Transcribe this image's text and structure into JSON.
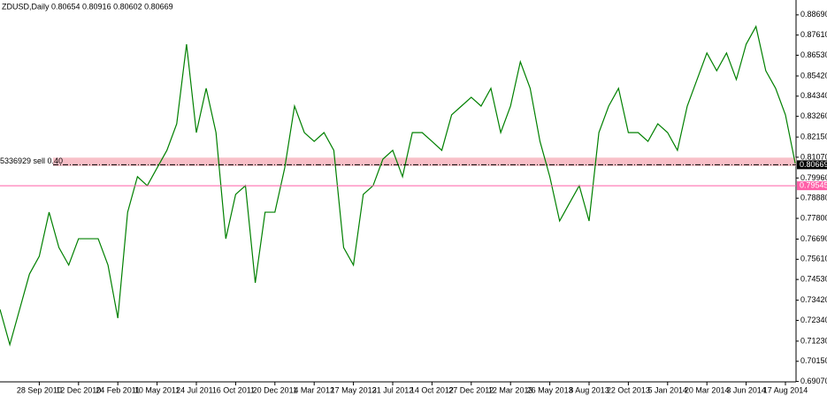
{
  "chart_data": {
    "type": "line",
    "title": "ZDUSD,Daily  0.80654 0.80916 0.80602 0.80669",
    "order_label": "5336929 sell 0.40",
    "categories": [
      null,
      null,
      null,
      null,
      "28 Sep 2010",
      null,
      null,
      null,
      "12 Dec 2010",
      null,
      null,
      null,
      "24 Feb 2011",
      null,
      null,
      null,
      "10 May 2011",
      null,
      null,
      null,
      "24 Jul 2011",
      null,
      null,
      null,
      "6 Oct 2011",
      null,
      null,
      null,
      "20 Dec 2011",
      null,
      null,
      null,
      "4 Mar 2012",
      null,
      null,
      null,
      "17 May 2012",
      null,
      null,
      null,
      "31 Jul 2012",
      null,
      null,
      null,
      "14 Oct 2012",
      null,
      null,
      null,
      "27 Dec 2012",
      null,
      null,
      null,
      "12 Mar 2013",
      null,
      null,
      null,
      "26 May 2013",
      null,
      null,
      null,
      "8 Aug 2013",
      null,
      null,
      null,
      "22 Oct 2013",
      null,
      null,
      null,
      "5 Jan 2014",
      null,
      null,
      null,
      "20 Mar 2014",
      null,
      null,
      null,
      "3 Jun 2014",
      null,
      null,
      null,
      "17 Aug 2014",
      null
    ],
    "values": [
      0.7293,
      0.7104,
      0.7293,
      0.7482,
      0.7577,
      0.7813,
      0.7624,
      0.753,
      0.7671,
      0.7671,
      0.7671,
      0.753,
      0.7246,
      0.7813,
      0.8003,
      0.7955,
      0.805,
      0.8144,
      0.8286,
      0.8712,
      0.8239,
      0.8476,
      0.8239,
      0.7671,
      0.7908,
      0.7955,
      0.7435,
      0.7813,
      0.7813,
      0.805,
      0.8381,
      0.8239,
      0.8192,
      0.8239,
      0.8144,
      0.7624,
      0.753,
      0.7908,
      0.7955,
      0.8097,
      0.8144,
      0.8003,
      0.8239,
      0.8239,
      0.8192,
      0.8144,
      0.8334,
      0.8381,
      0.8428,
      0.8381,
      0.8476,
      0.8239,
      0.8381,
      0.8618,
      0.8476,
      0.8192,
      0.8003,
      0.7766,
      0.7861,
      0.7955,
      0.7766,
      0.8239,
      0.8381,
      0.8476,
      0.8239,
      0.8239,
      0.8192,
      0.8286,
      0.8239,
      0.8144,
      0.8381,
      0.8523,
      0.8665,
      0.857,
      0.8665,
      0.8523,
      0.8712,
      0.8807,
      0.857,
      0.8476,
      0.8334,
      0.8074
    ],
    "color": "#008000",
    "ylim": [
      0.6905,
      0.8925
    ],
    "yticks": [
      {
        "value": 0.8869,
        "label": "0.88690"
      },
      {
        "value": 0.8761,
        "label": "0.87610"
      },
      {
        "value": 0.8653,
        "label": "0.86530"
      },
      {
        "value": 0.8542,
        "label": "0.85420"
      },
      {
        "value": 0.8434,
        "label": "0.84340"
      },
      {
        "value": 0.8326,
        "label": "0.83260"
      },
      {
        "value": 0.8215,
        "label": "0.82150"
      },
      {
        "value": 0.8107,
        "label": "0.81070"
      },
      {
        "value": 0.7996,
        "label": "0.79960"
      },
      {
        "value": 0.7888,
        "label": "0.78880"
      },
      {
        "value": 0.778,
        "label": "0.77800"
      },
      {
        "value": 0.7669,
        "label": "0.76690"
      },
      {
        "value": 0.7561,
        "label": "0.75610"
      },
      {
        "value": 0.7453,
        "label": "0.74530"
      },
      {
        "value": 0.7342,
        "label": "0.73420"
      },
      {
        "value": 0.7234,
        "label": "0.72340"
      },
      {
        "value": 0.7123,
        "label": "0.71230"
      },
      {
        "value": 0.7015,
        "label": "0.70150"
      },
      {
        "value": 0.6907,
        "label": "0.69070"
      }
    ],
    "band": [
      0.806,
      0.8105
    ],
    "band_color": "#f8c0c8",
    "price_level": 0.80669,
    "stop_level": 0.79545,
    "stop_color": "#ff5fa8"
  }
}
